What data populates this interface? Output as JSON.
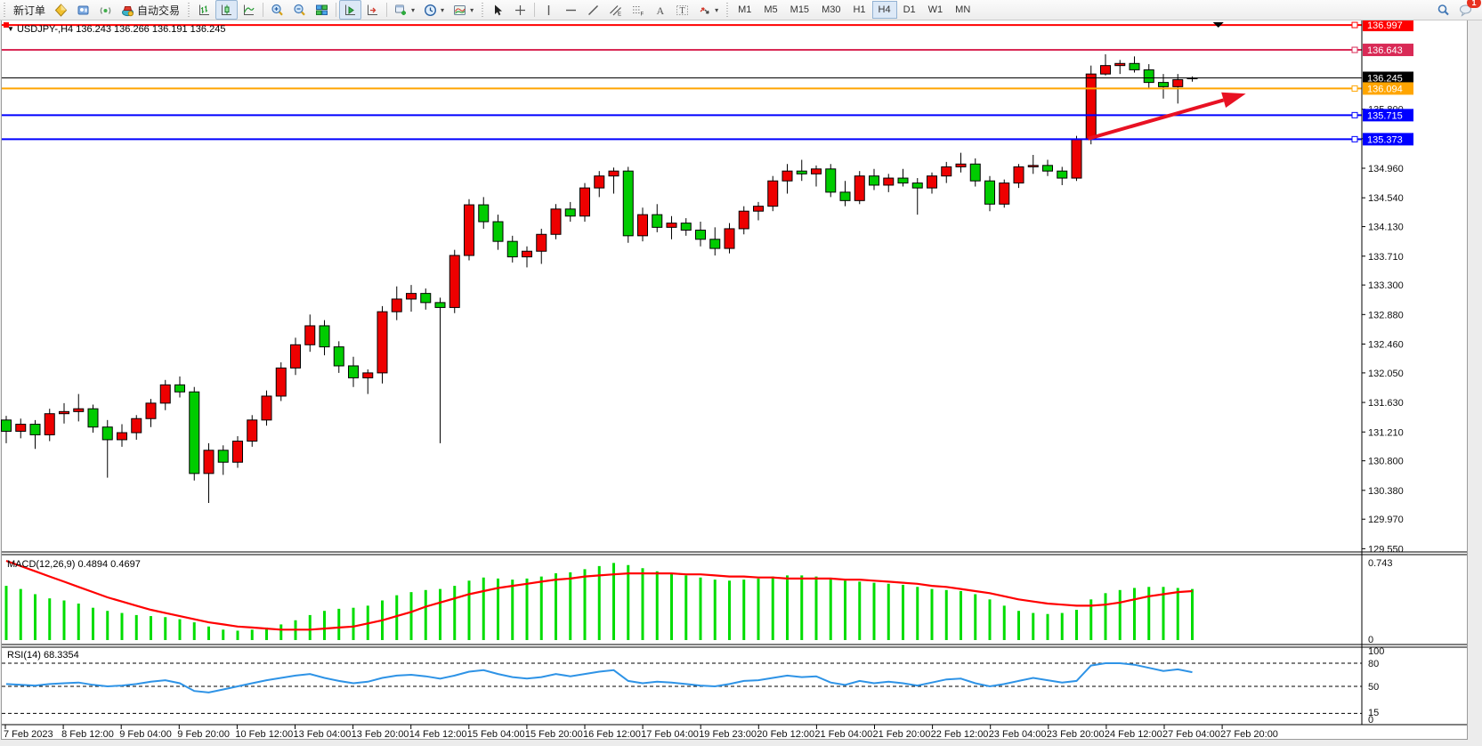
{
  "toolbar": {
    "new_order_label": "新订单",
    "autotrading_label": "自动交易",
    "timeframes": [
      "M1",
      "M5",
      "M15",
      "M30",
      "H1",
      "H4",
      "D1",
      "W1",
      "MN"
    ],
    "active_timeframe": "H4",
    "chat_badge": "1",
    "icon_names": [
      "metaeditor-diamond-icon",
      "profiles-icon",
      "signals-icon",
      "autotrading-stop-icon",
      "bar-chart-icon",
      "candlestick-chart-icon",
      "line-chart-icon",
      "zoom-in-icon",
      "zoom-out-icon",
      "tile-windows-icon",
      "auto-scroll-icon",
      "chart-shift-icon",
      "new-chart-icon",
      "periods-clock-icon",
      "indicators-icon",
      "cursor-icon",
      "crosshair-icon",
      "vertical-line-icon",
      "horizontal-line-icon",
      "trendline-icon",
      "equidistant-channel-icon",
      "fibonacci-icon",
      "text-icon",
      "text-label-icon",
      "arrows-icon",
      "search-icon",
      "chat-icon"
    ]
  },
  "chart": {
    "collapse_marker": "▼",
    "symbol_period": "USDJPY-,H4",
    "title_ohlc": "136.243 136.266 136.191 136.245",
    "macd_label": "MACD(12,26,9) 0.4894 0.4697",
    "rsi_label": "RSI(14) 68.3354"
  },
  "chart_data": {
    "type": "candlestick",
    "symbol": "USDJPY-",
    "period": "H4",
    "current_bar": {
      "open": 136.243,
      "high": 136.266,
      "low": 136.191,
      "close": 136.245
    },
    "colors": {
      "up_candle": "#ee0000",
      "down_candle": "#00cc00",
      "wick": "#000000",
      "macd_histogram": "#00dd00",
      "macd_signal": "#ff0000",
      "rsi_line": "#2e93e6",
      "annotation_arrow": "#e81123"
    },
    "price_axis_ticks": [
      "135.800",
      "135.380",
      "134.960",
      "134.540",
      "134.130",
      "133.710",
      "133.300",
      "132.880",
      "132.460",
      "132.050",
      "131.630",
      "131.210",
      "130.800",
      "130.380",
      "129.970",
      "129.550"
    ],
    "time_axis_labels": [
      "7 Feb 2023",
      "8 Feb 12:00",
      "9 Feb 04:00",
      "9 Feb 20:00",
      "10 Feb 12:00",
      "13 Feb 04:00",
      "13 Feb 20:00",
      "14 Feb 12:00",
      "15 Feb 04:00",
      "15 Feb 20:00",
      "16 Feb 12:00",
      "17 Feb 04:00",
      "19 Feb 23:00",
      "20 Feb 12:00",
      "21 Feb 04:00",
      "21 Feb 20:00",
      "22 Feb 12:00",
      "23 Feb 04:00",
      "23 Feb 20:00",
      "24 Feb 12:00",
      "27 Feb 04:00",
      "27 Feb 20:00"
    ],
    "levels": [
      {
        "label": "136.997",
        "price": 136.997,
        "color": "#ff0000",
        "width": 2
      },
      {
        "label": "136.643",
        "price": 136.643,
        "color": "#d92a56",
        "width": 2
      },
      {
        "label": "136.245",
        "price": 136.245,
        "color": "#000000",
        "width": 1,
        "is_current_price": true
      },
      {
        "label": "136.094",
        "price": 136.094,
        "color": "#ffa500",
        "width": 2
      },
      {
        "label": "135.715",
        "price": 135.715,
        "color": "#0000ff",
        "width": 2
      },
      {
        "label": "135.373",
        "price": 135.373,
        "color": "#0000ff",
        "width": 2
      }
    ],
    "bars": [
      [
        131.38,
        131.44,
        131.05,
        131.22
      ],
      [
        131.22,
        131.4,
        131.12,
        131.32
      ],
      [
        131.32,
        131.38,
        130.97,
        131.17
      ],
      [
        131.17,
        131.54,
        131.08,
        131.47
      ],
      [
        131.47,
        131.62,
        131.33,
        131.5
      ],
      [
        131.5,
        131.75,
        131.36,
        131.54
      ],
      [
        131.54,
        131.6,
        131.2,
        131.28
      ],
      [
        131.28,
        131.38,
        130.56,
        131.1
      ],
      [
        131.1,
        131.32,
        131.0,
        131.2
      ],
      [
        131.2,
        131.45,
        131.1,
        131.4
      ],
      [
        131.4,
        131.68,
        131.28,
        131.62
      ],
      [
        131.62,
        131.95,
        131.52,
        131.88
      ],
      [
        131.88,
        132.0,
        131.7,
        131.78
      ],
      [
        131.78,
        131.85,
        130.52,
        130.62
      ],
      [
        130.62,
        131.05,
        130.2,
        130.95
      ],
      [
        130.95,
        131.02,
        130.6,
        130.78
      ],
      [
        130.78,
        131.15,
        130.7,
        131.08
      ],
      [
        131.08,
        131.45,
        131.0,
        131.38
      ],
      [
        131.38,
        131.8,
        131.3,
        131.72
      ],
      [
        131.72,
        132.2,
        131.65,
        132.12
      ],
      [
        132.12,
        132.55,
        132.02,
        132.45
      ],
      [
        132.45,
        132.88,
        132.35,
        132.72
      ],
      [
        132.72,
        132.8,
        132.3,
        132.42
      ],
      [
        132.42,
        132.5,
        132.05,
        132.15
      ],
      [
        132.15,
        132.28,
        131.85,
        131.98
      ],
      [
        131.98,
        132.1,
        131.75,
        132.05
      ],
      [
        132.05,
        133.0,
        131.9,
        132.92
      ],
      [
        132.92,
        133.28,
        132.8,
        133.1
      ],
      [
        133.1,
        133.3,
        132.92,
        133.18
      ],
      [
        133.18,
        133.25,
        132.95,
        133.05
      ],
      [
        133.05,
        133.12,
        131.05,
        132.98
      ],
      [
        132.98,
        133.8,
        132.9,
        133.72
      ],
      [
        133.72,
        134.52,
        133.65,
        134.44
      ],
      [
        134.44,
        134.55,
        134.1,
        134.2
      ],
      [
        134.2,
        134.3,
        133.8,
        133.92
      ],
      [
        133.92,
        134.0,
        133.62,
        133.7
      ],
      [
        133.7,
        133.85,
        133.55,
        133.78
      ],
      [
        133.78,
        134.1,
        133.6,
        134.02
      ],
      [
        134.02,
        134.45,
        133.95,
        134.38
      ],
      [
        134.38,
        134.48,
        134.2,
        134.28
      ],
      [
        134.28,
        134.75,
        134.2,
        134.68
      ],
      [
        134.68,
        134.92,
        134.55,
        134.85
      ],
      [
        134.85,
        134.97,
        134.6,
        134.92
      ],
      [
        134.92,
        134.98,
        133.9,
        134.0
      ],
      [
        134.0,
        134.4,
        133.92,
        134.3
      ],
      [
        134.3,
        134.45,
        134.05,
        134.12
      ],
      [
        134.12,
        134.28,
        133.95,
        134.18
      ],
      [
        134.18,
        134.25,
        134.0,
        134.08
      ],
      [
        134.08,
        134.2,
        133.85,
        133.95
      ],
      [
        133.95,
        134.12,
        133.72,
        133.82
      ],
      [
        133.82,
        134.18,
        133.75,
        134.1
      ],
      [
        134.1,
        134.42,
        134.02,
        134.35
      ],
      [
        134.35,
        134.48,
        134.22,
        134.42
      ],
      [
        134.42,
        134.85,
        134.35,
        134.78
      ],
      [
        134.78,
        135.02,
        134.6,
        134.92
      ],
      [
        134.92,
        135.08,
        134.78,
        134.88
      ],
      [
        134.88,
        135.0,
        134.7,
        134.95
      ],
      [
        134.95,
        135.02,
        134.55,
        134.62
      ],
      [
        134.62,
        134.78,
        134.42,
        134.5
      ],
      [
        134.5,
        134.92,
        134.45,
        134.85
      ],
      [
        134.85,
        134.95,
        134.65,
        134.72
      ],
      [
        134.72,
        134.88,
        134.62,
        134.82
      ],
      [
        134.82,
        134.95,
        134.7,
        134.75
      ],
      [
        134.75,
        134.82,
        134.3,
        134.68
      ],
      [
        134.68,
        134.9,
        134.6,
        134.85
      ],
      [
        134.85,
        135.05,
        134.75,
        134.98
      ],
      [
        134.98,
        135.18,
        134.9,
        135.02
      ],
      [
        135.02,
        135.1,
        134.7,
        134.78
      ],
      [
        134.78,
        134.85,
        134.35,
        134.45
      ],
      [
        134.45,
        134.8,
        134.4,
        134.75
      ],
      [
        134.75,
        135.02,
        134.68,
        134.98
      ],
      [
        134.98,
        135.15,
        134.88,
        135.0
      ],
      [
        135.0,
        135.08,
        134.85,
        134.92
      ],
      [
        134.92,
        134.98,
        134.72,
        134.82
      ],
      [
        134.82,
        135.42,
        134.78,
        135.37
      ],
      [
        135.37,
        136.42,
        135.3,
        136.3
      ],
      [
        136.3,
        136.58,
        136.28,
        136.42
      ],
      [
        136.42,
        136.5,
        136.3,
        136.45
      ],
      [
        136.45,
        136.55,
        136.32,
        136.36
      ],
      [
        136.36,
        136.44,
        136.1,
        136.18
      ],
      [
        136.18,
        136.3,
        135.95,
        136.12
      ],
      [
        136.12,
        136.3,
        135.88,
        136.22
      ],
      [
        136.243,
        136.266,
        136.191,
        136.245
      ]
    ],
    "macd": {
      "params": "12,26,9",
      "value": 0.4894,
      "signal_value": 0.4697,
      "scale_max": 0.743,
      "scale_min": 0,
      "axis_labels": [
        "0.743",
        "0"
      ],
      "histogram": [
        0.52,
        0.49,
        0.44,
        0.4,
        0.38,
        0.35,
        0.31,
        0.28,
        0.26,
        0.24,
        0.23,
        0.22,
        0.2,
        0.17,
        0.13,
        0.1,
        0.09,
        0.1,
        0.12,
        0.15,
        0.19,
        0.24,
        0.28,
        0.3,
        0.31,
        0.33,
        0.38,
        0.43,
        0.46,
        0.48,
        0.49,
        0.52,
        0.57,
        0.6,
        0.59,
        0.58,
        0.59,
        0.61,
        0.64,
        0.65,
        0.68,
        0.71,
        0.74,
        0.72,
        0.69,
        0.66,
        0.64,
        0.62,
        0.6,
        0.58,
        0.57,
        0.58,
        0.59,
        0.61,
        0.62,
        0.62,
        0.61,
        0.59,
        0.57,
        0.56,
        0.55,
        0.54,
        0.53,
        0.51,
        0.49,
        0.48,
        0.47,
        0.44,
        0.39,
        0.33,
        0.28,
        0.26,
        0.25,
        0.26,
        0.29,
        0.39,
        0.45,
        0.48,
        0.5,
        0.51,
        0.51,
        0.5,
        0.49
      ],
      "signal": [
        0.76,
        0.71,
        0.66,
        0.61,
        0.56,
        0.51,
        0.46,
        0.41,
        0.37,
        0.33,
        0.29,
        0.26,
        0.23,
        0.2,
        0.17,
        0.15,
        0.13,
        0.12,
        0.11,
        0.1,
        0.1,
        0.1,
        0.11,
        0.12,
        0.13,
        0.16,
        0.19,
        0.23,
        0.27,
        0.32,
        0.36,
        0.4,
        0.44,
        0.47,
        0.5,
        0.52,
        0.54,
        0.56,
        0.58,
        0.59,
        0.61,
        0.62,
        0.63,
        0.64,
        0.64,
        0.64,
        0.64,
        0.63,
        0.63,
        0.62,
        0.61,
        0.61,
        0.6,
        0.6,
        0.59,
        0.59,
        0.59,
        0.59,
        0.58,
        0.58,
        0.57,
        0.56,
        0.55,
        0.54,
        0.52,
        0.51,
        0.49,
        0.47,
        0.45,
        0.42,
        0.39,
        0.37,
        0.35,
        0.34,
        0.33,
        0.33,
        0.34,
        0.36,
        0.39,
        0.42,
        0.44,
        0.46,
        0.47
      ]
    },
    "rsi": {
      "period": 14,
      "value": 68.3354,
      "level_lines": [
        80,
        50,
        15
      ],
      "axis_labels": [
        "100",
        "80",
        "50",
        "15",
        "0"
      ],
      "values": [
        53,
        52,
        51,
        53,
        54,
        55,
        52,
        50,
        51,
        53,
        56,
        58,
        54,
        44,
        42,
        46,
        50,
        54,
        58,
        61,
        64,
        66,
        61,
        57,
        54,
        56,
        61,
        64,
        65,
        63,
        60,
        64,
        69,
        71,
        66,
        62,
        60,
        62,
        66,
        63,
        66,
        69,
        71,
        57,
        54,
        56,
        55,
        53,
        51,
        50,
        53,
        57,
        58,
        61,
        64,
        62,
        63,
        55,
        52,
        57,
        54,
        56,
        54,
        51,
        55,
        59,
        60,
        54,
        50,
        53,
        57,
        61,
        58,
        55,
        57,
        77,
        80,
        80,
        78,
        74,
        70,
        72,
        68.3
      ]
    },
    "annotation_arrow": {
      "from": {
        "bar": 74.8,
        "price": 135.38
      },
      "to": {
        "bar": 85.7,
        "price": 136.02
      }
    },
    "shift_marker_bar": 83.8
  }
}
